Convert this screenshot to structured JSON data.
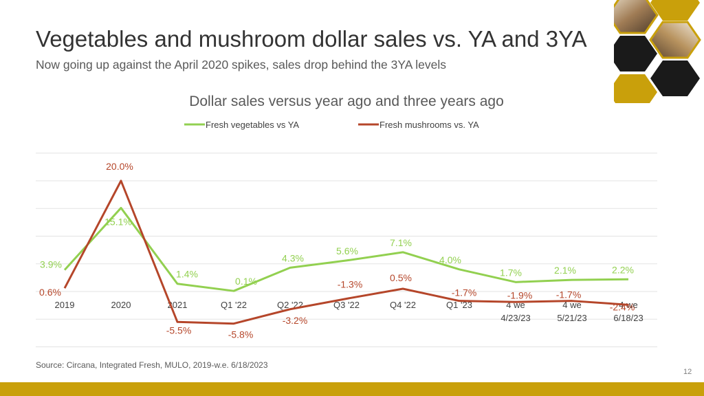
{
  "slide": {
    "title": "Vegetables and mushroom dollar sales vs. YA and 3YA",
    "subtitle": "Now going up against the April 2020 spikes, sales drop behind the 3YA levels",
    "source": "Source: Circana, Integrated Fresh, MULO, 2019-w.e. 6/18/2023",
    "page_number": "12",
    "colors": {
      "vegetables": "#92D050",
      "mushrooms": "#B5462A",
      "accent_bar": "#C9A00B"
    }
  },
  "chart_data": {
    "type": "line",
    "title": "Dollar sales versus year ago and three years ago",
    "categories": [
      [
        "2019"
      ],
      [
        "2020"
      ],
      [
        "2021"
      ],
      [
        "Q1 '22"
      ],
      [
        "Q2 '22"
      ],
      [
        "Q3 '22"
      ],
      [
        "Q4 '22"
      ],
      [
        "Q1 '23"
      ],
      [
        "4 we",
        "4/23/23"
      ],
      [
        "4 we",
        "5/21/23"
      ],
      [
        "4 we",
        "6/18/23"
      ]
    ],
    "series": [
      {
        "name": "Fresh vegetables vs YA",
        "color": "#92D050",
        "values": [
          3.9,
          15.1,
          1.4,
          0.1,
          4.3,
          5.6,
          7.1,
          4.0,
          1.7,
          2.1,
          2.2
        ],
        "labels": [
          "3.9%",
          "15.1%",
          "1.4%",
          "0.1%",
          "4.3%",
          "5.6%",
          "7.1%",
          "4.0%",
          "1.7%",
          "2.1%",
          "2.2%"
        ]
      },
      {
        "name": "Fresh mushrooms vs. YA",
        "color": "#B5462A",
        "values": [
          0.6,
          20.0,
          -5.5,
          -5.8,
          -3.2,
          -1.3,
          0.5,
          -1.7,
          -1.9,
          -1.7,
          -2.4
        ],
        "labels": [
          "0.6%",
          "20.0%",
          "-5.5%",
          "-5.8%",
          "-3.2%",
          "-1.3%",
          "0.5%",
          "-1.7%",
          "-1.9%",
          "-1.7%",
          "-2.4%"
        ]
      }
    ],
    "ylim": [
      -10,
      25
    ],
    "grid": true,
    "legend": "top"
  }
}
